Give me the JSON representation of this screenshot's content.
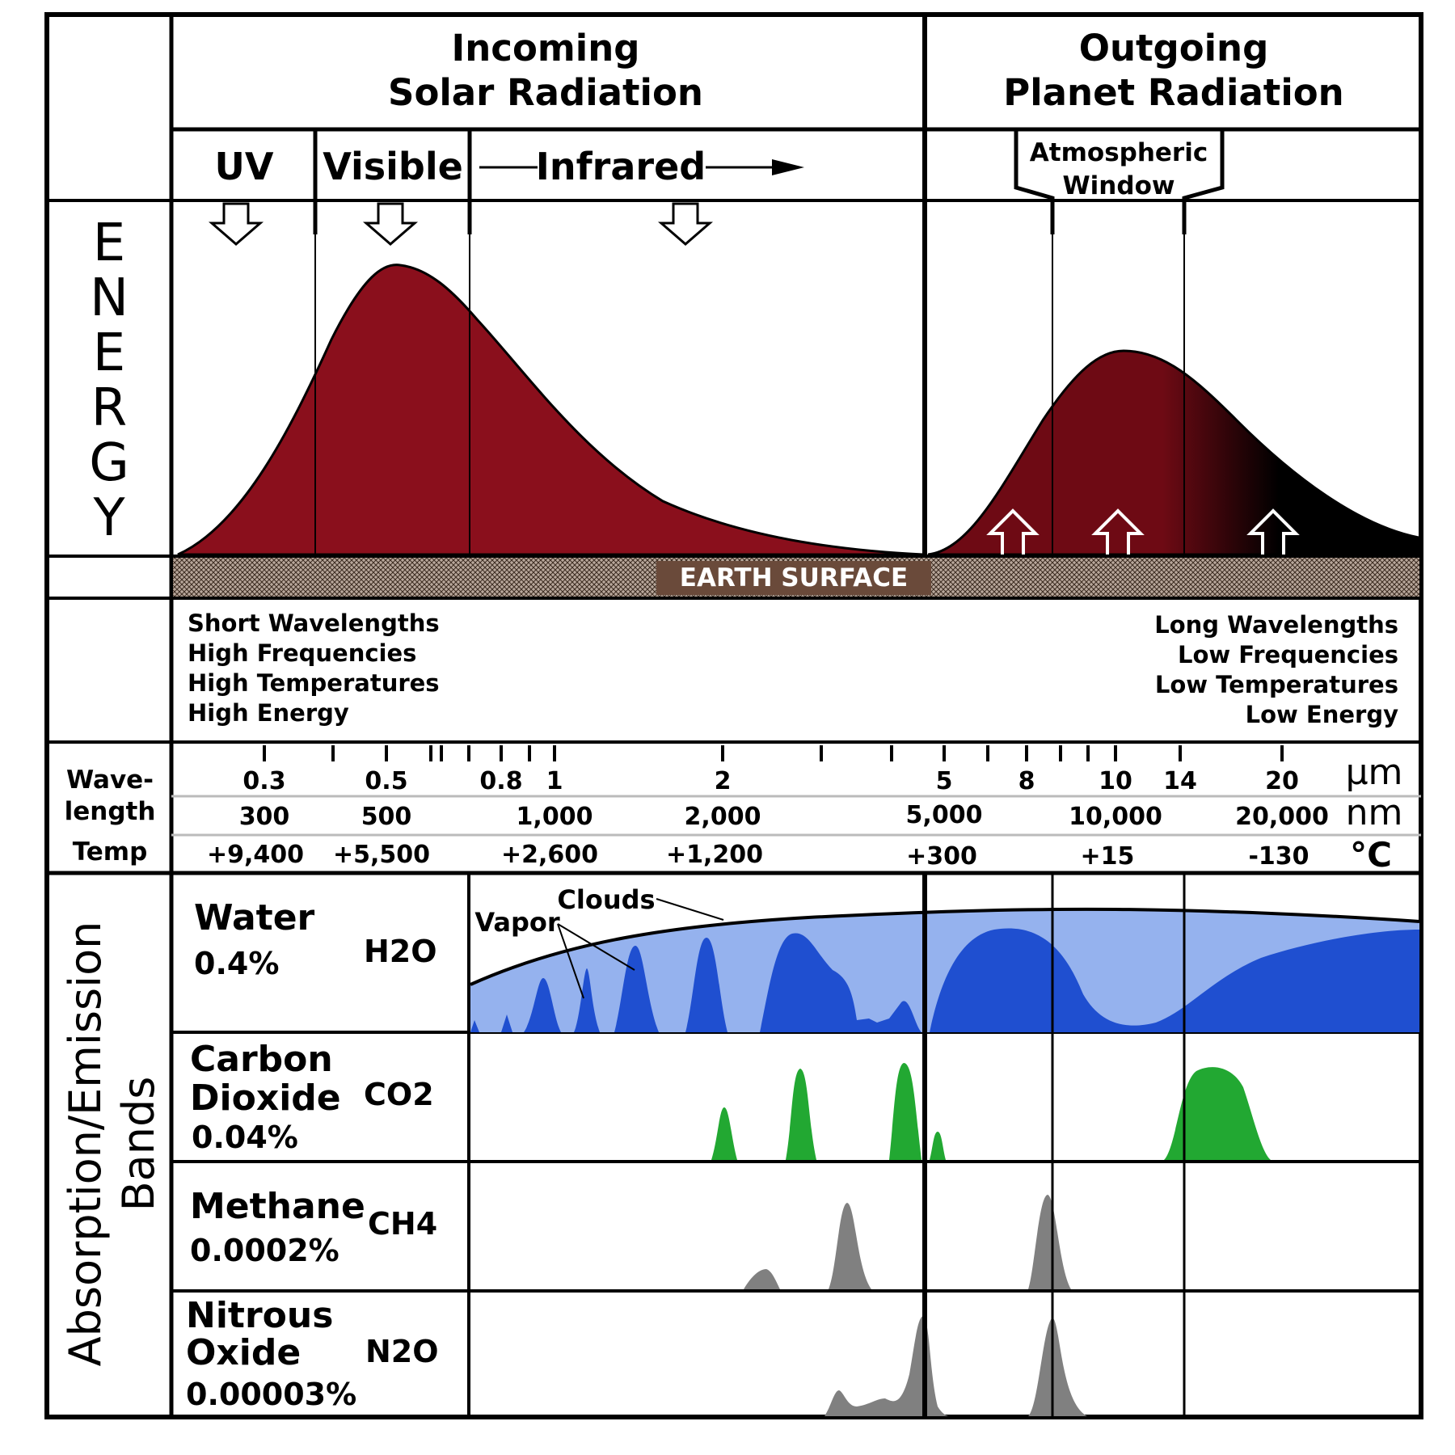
{
  "header": {
    "incoming_line1": "Incoming",
    "incoming_line2": "Solar Radiation",
    "outgoing_line1": "Outgoing",
    "outgoing_line2": "Planet Radiation"
  },
  "bands": {
    "uv": "UV",
    "visible": "Visible",
    "infrared": "Infrared",
    "window_line1": "Atmospheric",
    "window_line2": "Window"
  },
  "energy_label": [
    "E",
    "N",
    "E",
    "R",
    "G",
    "Y"
  ],
  "earth_surface": "EARTH SURFACE",
  "left_props": [
    "Short Wavelengths",
    "High Frequencies",
    "High Temperatures",
    "High Energy"
  ],
  "right_props": [
    "Long Wavelengths",
    "Low Frequencies",
    "Low Temperatures",
    "Low Energy"
  ],
  "scale": {
    "row_labels": {
      "wave1": "Wave-",
      "wave2": "length",
      "temp": "Temp"
    },
    "units": {
      "um": "µm",
      "nm": "nm",
      "temp": "°C"
    },
    "um": [
      "0.3",
      "0.5",
      "0.8",
      "1",
      "2",
      "5",
      "8",
      "10",
      "14",
      "20"
    ],
    "nm": [
      "300",
      "500",
      "1,000",
      "2,000",
      "5,000",
      "10,000",
      "20,000"
    ],
    "temp": [
      "+9,400",
      "+5,500",
      "+2,600",
      "+1,200",
      "+300",
      "+15",
      "-130"
    ]
  },
  "absorption": {
    "side_label1": "Absorption/Emission",
    "side_label2": "Bands",
    "water": {
      "name": "Water",
      "pct": "0.4%",
      "formula": "H2O",
      "clouds": "Clouds",
      "vapor": "Vapor"
    },
    "co2": {
      "name1": "Carbon",
      "name2": "Dioxide",
      "pct": "0.04%",
      "formula": "CO2"
    },
    "methane": {
      "name": "Methane",
      "pct": "0.0002%",
      "formula": "CH4"
    },
    "n2o": {
      "name1": "Nitrous",
      "name2": "Oxide",
      "pct": "0.00003%",
      "formula": "N2O"
    }
  },
  "colors": {
    "uv": "#c79bf5",
    "visible": "#f5eba0",
    "infrared": "#8a0f1c",
    "outgoing": "#6e0a14",
    "earth": "#6a4a3a",
    "water_light": "#95b2ee",
    "water_dark": "#1f4fd0",
    "co2": "#22a832",
    "methane": "#808080"
  }
}
